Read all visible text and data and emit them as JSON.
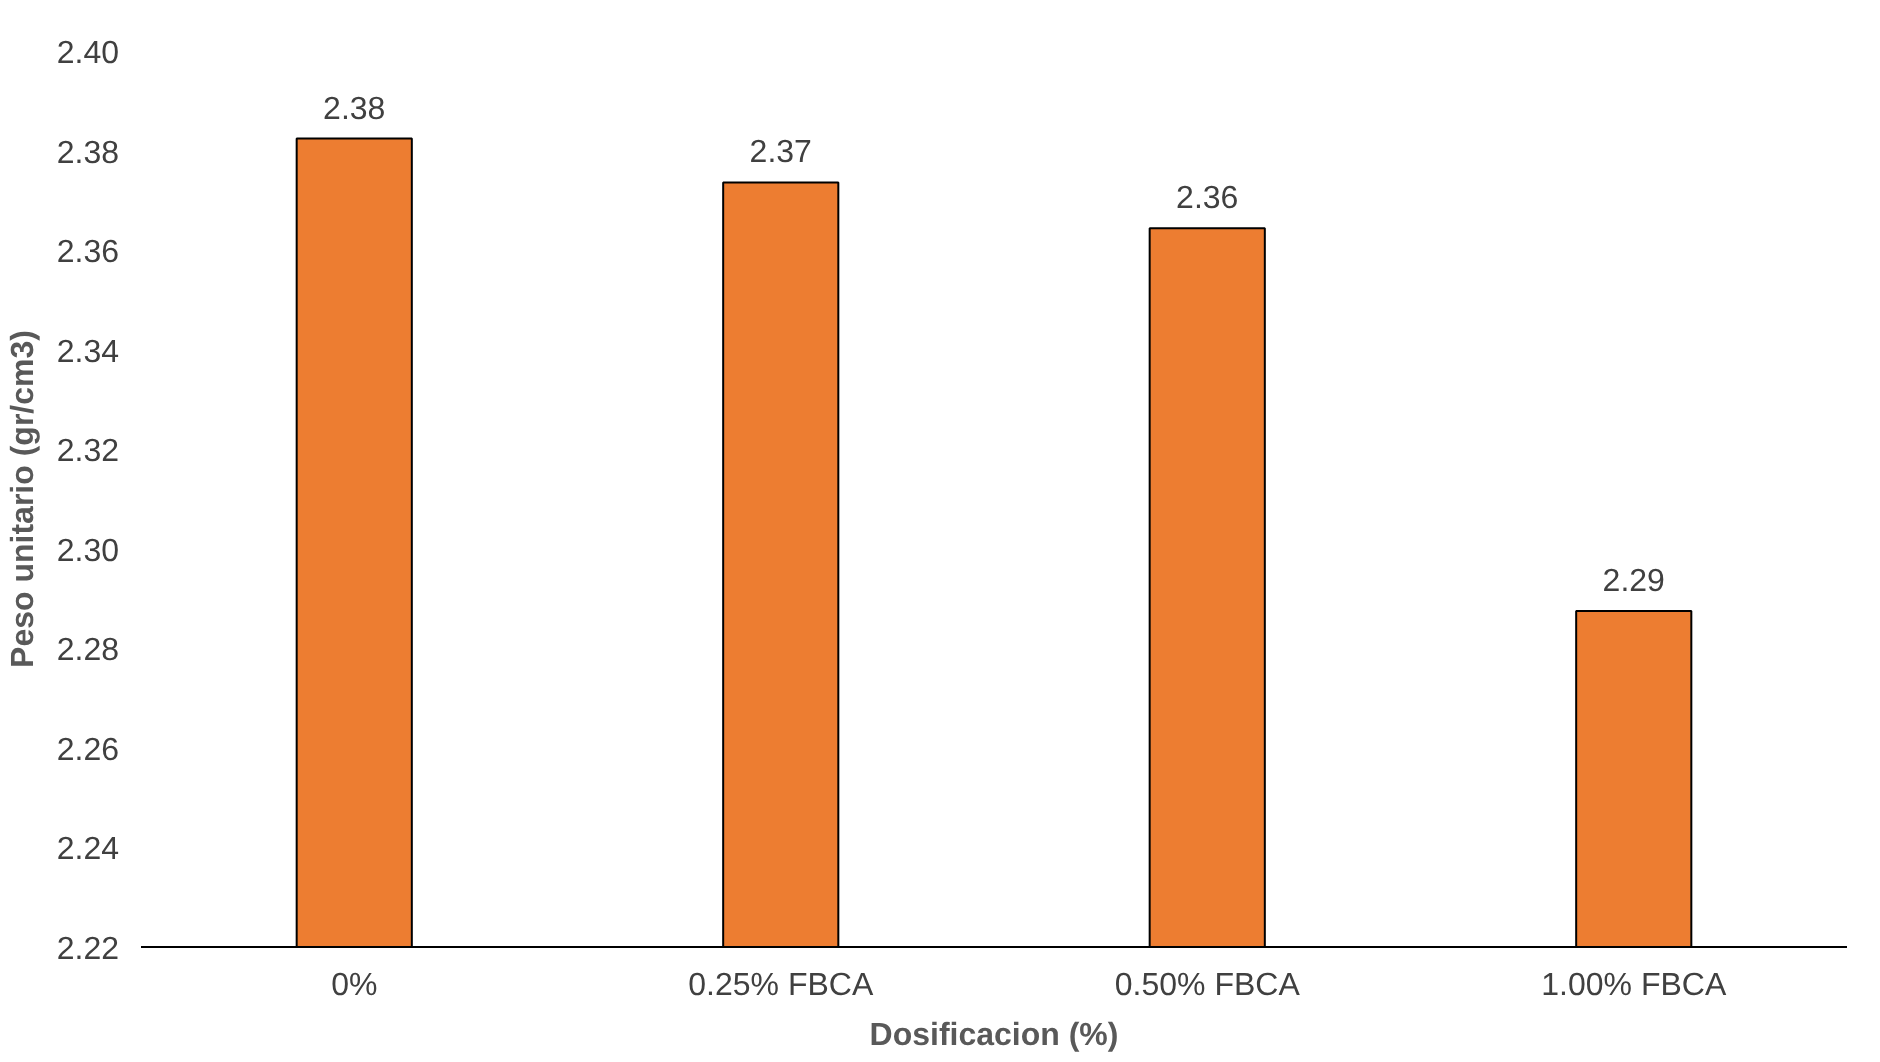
{
  "chart_data": {
    "type": "bar",
    "xlabel": "Dosificacion (%)",
    "ylabel": "Peso unitario (gr/cm3)",
    "categories": [
      "0%",
      "0.25% FBCA",
      "0.50% FBCA",
      "1.00% FBCA"
    ],
    "values": [
      2.3824,
      2.3736,
      2.3644,
      2.2875
    ],
    "value_labels": [
      "2.38",
      "2.37",
      "2.36",
      "2.29"
    ],
    "color": "#ed7d31",
    "ylim": [
      2.22,
      2.4
    ],
    "yticks": [
      {
        "value": 2.22,
        "label": "2.22"
      },
      {
        "value": 2.24,
        "label": "2.24"
      },
      {
        "value": 2.26,
        "label": "2.26"
      },
      {
        "value": 2.28,
        "label": "2.28"
      },
      {
        "value": 2.3,
        "label": "2.30"
      },
      {
        "value": 2.32,
        "label": "2.32"
      },
      {
        "value": 2.34,
        "label": "2.34"
      },
      {
        "value": 2.36,
        "label": "2.36"
      },
      {
        "value": 2.38,
        "label": "2.38"
      },
      {
        "value": 2.4,
        "label": "2.40"
      }
    ],
    "grid": false
  }
}
